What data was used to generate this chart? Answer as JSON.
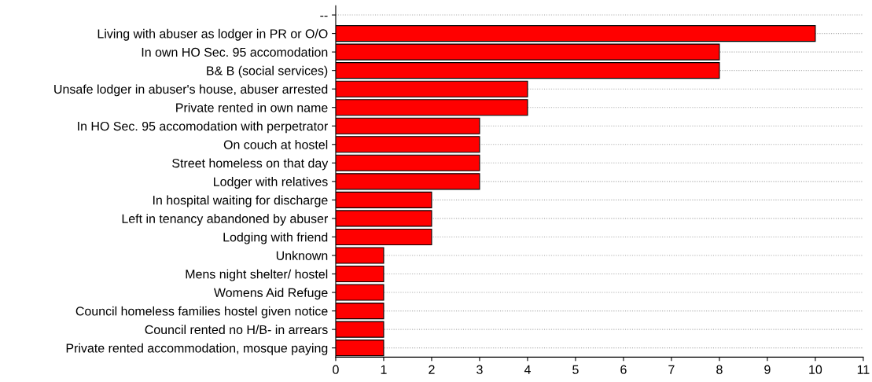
{
  "chart_data": {
    "type": "bar",
    "orientation": "horizontal",
    "categories": [
      "--",
      "Living with abuser as lodger in PR or O/O",
      "In own HO Sec. 95 accomodation",
      "B& B (social services)",
      "Unsafe lodger in abuser's house, abuser arrested",
      "Private rented in own name",
      "In HO Sec. 95 accomodation with perpetrator",
      "On couch at hostel",
      "Street homeless on that day",
      "Lodger with relatives",
      "In hospital waiting for discharge",
      "Left in tenancy abandoned by abuser",
      "Lodging with friend",
      "Unknown",
      "Mens night shelter/ hostel",
      "Womens Aid Refuge",
      "Council homeless families hostel given notice",
      "Council rented no H/B- in arrears",
      "Private rented accommodation, mosque paying"
    ],
    "values": [
      null,
      10,
      8,
      8,
      4,
      4,
      3,
      3,
      3,
      3,
      2,
      2,
      2,
      1,
      1,
      1,
      1,
      1,
      1
    ],
    "color": "#ff0000",
    "xlim": [
      0,
      11
    ],
    "xticks": [
      0,
      1,
      2,
      3,
      4,
      5,
      6,
      7,
      8,
      9,
      10,
      11
    ],
    "grid": "y",
    "legend": false
  }
}
